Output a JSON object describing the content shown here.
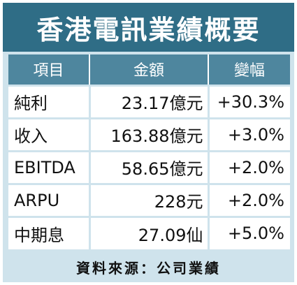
{
  "title": "香港電訊業績概要",
  "headers": {
    "item": "項目",
    "amount": "金額",
    "change": "變幅"
  },
  "rows": [
    {
      "item": "純利",
      "amount": "23.17億元",
      "change": "+30.3%"
    },
    {
      "item": "收入",
      "amount": "163.88億元",
      "change": "+3.0%"
    },
    {
      "item": "EBITDA",
      "amount": "58.65億元",
      "change": "+2.0%"
    },
    {
      "item": "ARPU",
      "amount": "228元",
      "change": "+2.0%"
    },
    {
      "item": "中期息",
      "amount": "27.09仙",
      "change": "+5.0%"
    }
  ],
  "source": "資料來源：公司業績",
  "colors": {
    "title_bg": "#2f6d86",
    "header_bg": "#4e869e",
    "frame_bg": "#cfe3ec"
  }
}
